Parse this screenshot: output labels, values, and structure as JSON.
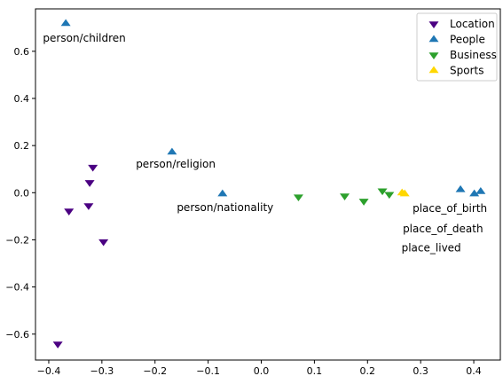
{
  "chart_data": {
    "type": "scatter",
    "title": "",
    "xlabel": "",
    "ylabel": "",
    "xlim": [
      -0.425,
      0.45
    ],
    "ylim": [
      -0.71,
      0.78
    ],
    "xticks": [
      -0.4,
      -0.3,
      -0.2,
      -0.1,
      0.0,
      0.1,
      0.2,
      0.3,
      0.4
    ],
    "yticks": [
      -0.6,
      -0.4,
      -0.2,
      0.0,
      0.2,
      0.4,
      0.6
    ],
    "xtick_labels": [
      "−0.4",
      "−0.3",
      "−0.2",
      "−0.1",
      "0.0",
      "0.1",
      "0.2",
      "0.3",
      "0.4"
    ],
    "ytick_labels": [
      "−0.6",
      "−0.4",
      "−0.2",
      "0.0",
      "0.2",
      "0.4",
      "0.6"
    ],
    "grid": false,
    "legend_position": "top-right",
    "series": [
      {
        "name": "Location",
        "marker": "triangle-down",
        "color": "#4b0082",
        "points": [
          {
            "x": -0.317,
            "y": 0.108
          },
          {
            "x": -0.323,
            "y": 0.043
          },
          {
            "x": -0.362,
            "y": -0.078
          },
          {
            "x": -0.325,
            "y": -0.055
          },
          {
            "x": -0.297,
            "y": -0.208
          },
          {
            "x": -0.383,
            "y": -0.642
          }
        ]
      },
      {
        "name": "People",
        "marker": "triangle-up",
        "color": "#1f77b4",
        "points": [
          {
            "x": -0.368,
            "y": 0.718
          },
          {
            "x": -0.168,
            "y": 0.172
          },
          {
            "x": -0.073,
            "y": -0.005
          },
          {
            "x": 0.375,
            "y": 0.013
          },
          {
            "x": 0.401,
            "y": -0.005
          },
          {
            "x": 0.413,
            "y": 0.005
          }
        ]
      },
      {
        "name": "Business",
        "marker": "triangle-down",
        "color": "#2ca02c",
        "points": [
          {
            "x": 0.07,
            "y": -0.018
          },
          {
            "x": 0.157,
            "y": -0.014
          },
          {
            "x": 0.193,
            "y": -0.036
          },
          {
            "x": 0.228,
            "y": 0.008
          },
          {
            "x": 0.241,
            "y": -0.007
          }
        ]
      },
      {
        "name": "Sports",
        "marker": "triangle-up",
        "color": "#ffd700",
        "points": [
          {
            "x": 0.265,
            "y": -0.001
          },
          {
            "x": 0.27,
            "y": -0.005
          }
        ]
      }
    ],
    "annotations": [
      {
        "text": "person/children",
        "x": -0.333,
        "y": 0.64
      },
      {
        "text": "person/religion",
        "x": -0.161,
        "y": 0.107
      },
      {
        "text": "person/nationality",
        "x": -0.068,
        "y": -0.078
      },
      {
        "text": "place_of_birth",
        "x": 0.355,
        "y": -0.082
      },
      {
        "text": "place_of_death",
        "x": 0.342,
        "y": -0.168
      },
      {
        "text": "place_lived",
        "x": 0.32,
        "y": -0.25
      }
    ]
  }
}
